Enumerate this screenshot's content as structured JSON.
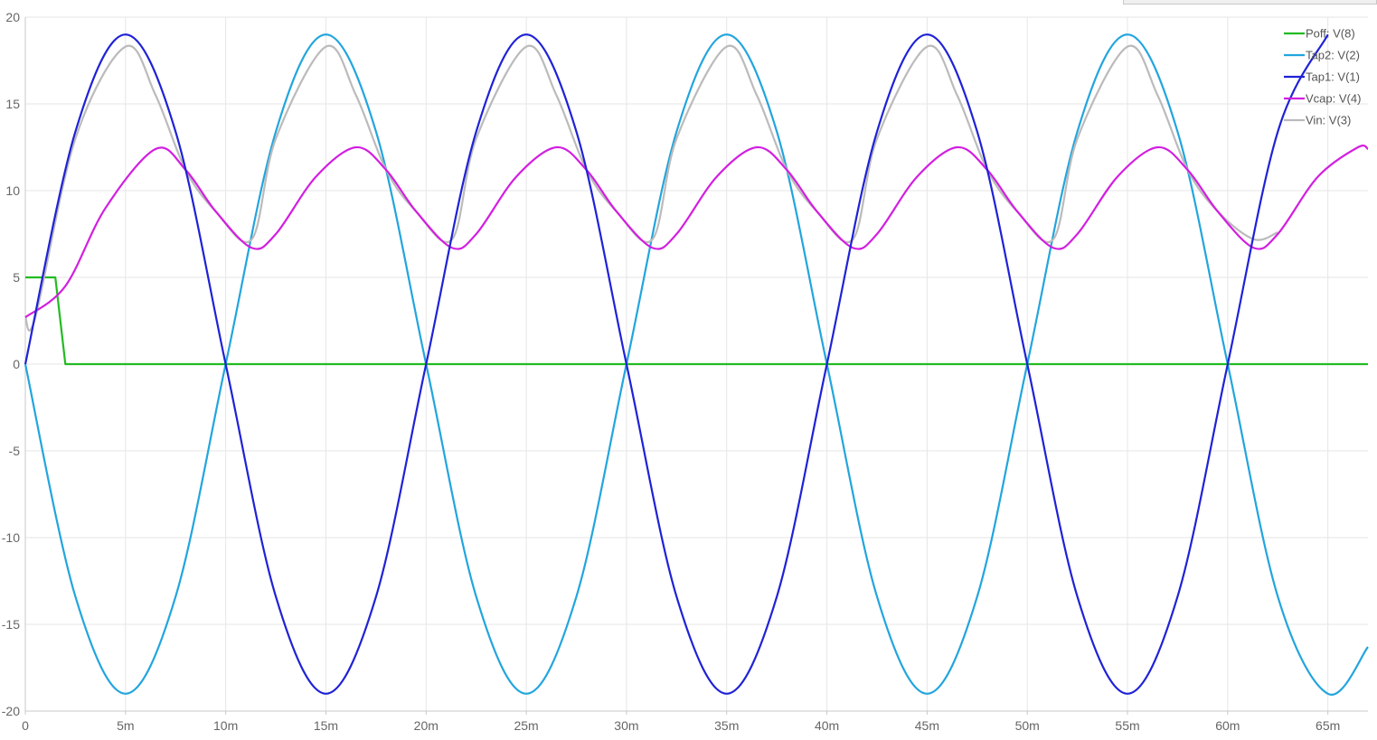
{
  "chart_data": {
    "type": "line",
    "xlim": [
      0,
      0.067
    ],
    "ylim": [
      -20,
      20
    ],
    "x_ticks": [
      {
        "value": 0,
        "label": "0"
      },
      {
        "value": 0.005,
        "label": "5m"
      },
      {
        "value": 0.01,
        "label": "10m"
      },
      {
        "value": 0.015,
        "label": "15m"
      },
      {
        "value": 0.02,
        "label": "20m"
      },
      {
        "value": 0.025,
        "label": "25m"
      },
      {
        "value": 0.03,
        "label": "30m"
      },
      {
        "value": 0.035,
        "label": "35m"
      },
      {
        "value": 0.04,
        "label": "40m"
      },
      {
        "value": 0.045,
        "label": "45m"
      },
      {
        "value": 0.05,
        "label": "50m"
      },
      {
        "value": 0.055,
        "label": "55m"
      },
      {
        "value": 0.06,
        "label": "60m"
      },
      {
        "value": 0.065,
        "label": "65m"
      }
    ],
    "y_ticks": [
      {
        "value": 20,
        "label": "20"
      },
      {
        "value": 15,
        "label": "15"
      },
      {
        "value": 10,
        "label": "10"
      },
      {
        "value": 5,
        "label": "5"
      },
      {
        "value": 0,
        "label": "0"
      },
      {
        "value": -5,
        "label": "-5"
      },
      {
        "value": -10,
        "label": "-10"
      },
      {
        "value": -15,
        "label": "-15"
      },
      {
        "value": -20,
        "label": "-20"
      }
    ],
    "grid": true,
    "legend_position": "top-right",
    "series": [
      {
        "name": "Poff: V(8)",
        "color": "#22bb22",
        "x": [
          0,
          0.0015,
          0.002,
          0.067
        ],
        "y": [
          5,
          5,
          0,
          0
        ]
      },
      {
        "name": "Tap2: V(2)",
        "color": "#22a5de",
        "x": [
          0,
          0.0025,
          0.005,
          0.0075,
          0.01,
          0.0125,
          0.015,
          0.0175,
          0.02,
          0.0225,
          0.025,
          0.0275,
          0.03,
          0.0325,
          0.035,
          0.0375,
          0.04,
          0.0425,
          0.045,
          0.0475,
          0.05,
          0.0525,
          0.055,
          0.0575,
          0.06,
          0.0625,
          0.065,
          0.067
        ],
        "y": [
          0,
          -13.4,
          -19,
          -13.4,
          0,
          13.4,
          19,
          13.4,
          0,
          -13.4,
          -19,
          -13.4,
          0,
          13.4,
          19,
          13.4,
          0,
          -13.4,
          -19,
          -13.4,
          0,
          13.4,
          19,
          13.4,
          0,
          -13.4,
          -19,
          -16.3
        ]
      },
      {
        "name": "Tap1: V(1)",
        "color": "#1f22d6",
        "x": [
          0,
          0.0025,
          0.005,
          0.0075,
          0.01,
          0.0125,
          0.015,
          0.0175,
          0.02,
          0.0225,
          0.025,
          0.0275,
          0.03,
          0.0325,
          0.035,
          0.0375,
          0.04,
          0.0425,
          0.045,
          0.0475,
          0.05,
          0.0525,
          0.055,
          0.0575,
          0.06,
          0.0625,
          0.065
        ],
        "y": [
          0,
          13.4,
          19,
          13.4,
          0,
          -13.4,
          -19,
          -13.4,
          0,
          13.4,
          19,
          13.4,
          0,
          -13.4,
          -19,
          -13.4,
          0,
          13.4,
          19,
          13.4,
          0,
          -13.4,
          -19,
          -13.4,
          0,
          13.4,
          19
        ]
      },
      {
        "name": "Vcap: V(4)",
        "color": "#d21fe0",
        "x": [
          0,
          0.002,
          0.004,
          0.0065,
          0.008,
          0.0095,
          0.0113,
          0.0125,
          0.0145,
          0.0165,
          0.018,
          0.0195,
          0.0213,
          0.0225,
          0.0245,
          0.0265,
          0.028,
          0.0295,
          0.0313,
          0.0325,
          0.0345,
          0.0365,
          0.038,
          0.0395,
          0.0413,
          0.0425,
          0.0445,
          0.0465,
          0.048,
          0.0495,
          0.0513,
          0.0525,
          0.0545,
          0.0565,
          0.058,
          0.0595,
          0.0613,
          0.0625,
          0.0645,
          0.0665,
          0.067
        ],
        "y": [
          2.7,
          4.5,
          9.0,
          12.4,
          11.2,
          8.8,
          6.7,
          7.5,
          10.8,
          12.5,
          11.2,
          8.8,
          6.7,
          7.5,
          10.8,
          12.5,
          11.2,
          8.8,
          6.7,
          7.5,
          10.8,
          12.5,
          11.2,
          8.8,
          6.7,
          7.5,
          10.8,
          12.5,
          11.2,
          8.8,
          6.7,
          7.5,
          10.8,
          12.5,
          11.2,
          8.8,
          6.7,
          7.5,
          10.8,
          12.5,
          12.4
        ]
      },
      {
        "name": "Vin: V(3)",
        "color": "#bbbbbb",
        "x": [
          0,
          0.0005,
          0.0025,
          0.005,
          0.0065,
          0.008,
          0.0095,
          0.0113,
          0.0125,
          0.015,
          0.0165,
          0.018,
          0.0195,
          0.0213,
          0.0225,
          0.025,
          0.0265,
          0.028,
          0.0295,
          0.0313,
          0.0325,
          0.035,
          0.0365,
          0.038,
          0.0395,
          0.0413,
          0.0425,
          0.045,
          0.0465,
          0.048,
          0.0495,
          0.0513,
          0.0525,
          0.055,
          0.0565,
          0.058,
          0.0595,
          0.0613,
          0.0625
        ],
        "y": [
          2.7,
          2.7,
          13.0,
          18.3,
          15.5,
          11.2,
          8.8,
          7.2,
          13.0,
          18.3,
          15.5,
          11.2,
          8.8,
          7.2,
          13.0,
          18.3,
          15.5,
          11.2,
          8.8,
          7.2,
          13.0,
          18.3,
          15.5,
          11.2,
          8.8,
          7.2,
          13.0,
          18.3,
          15.5,
          11.2,
          8.8,
          7.2,
          13.0,
          18.3,
          15.5,
          11.2,
          8.8,
          7.2,
          7.6
        ]
      }
    ]
  }
}
